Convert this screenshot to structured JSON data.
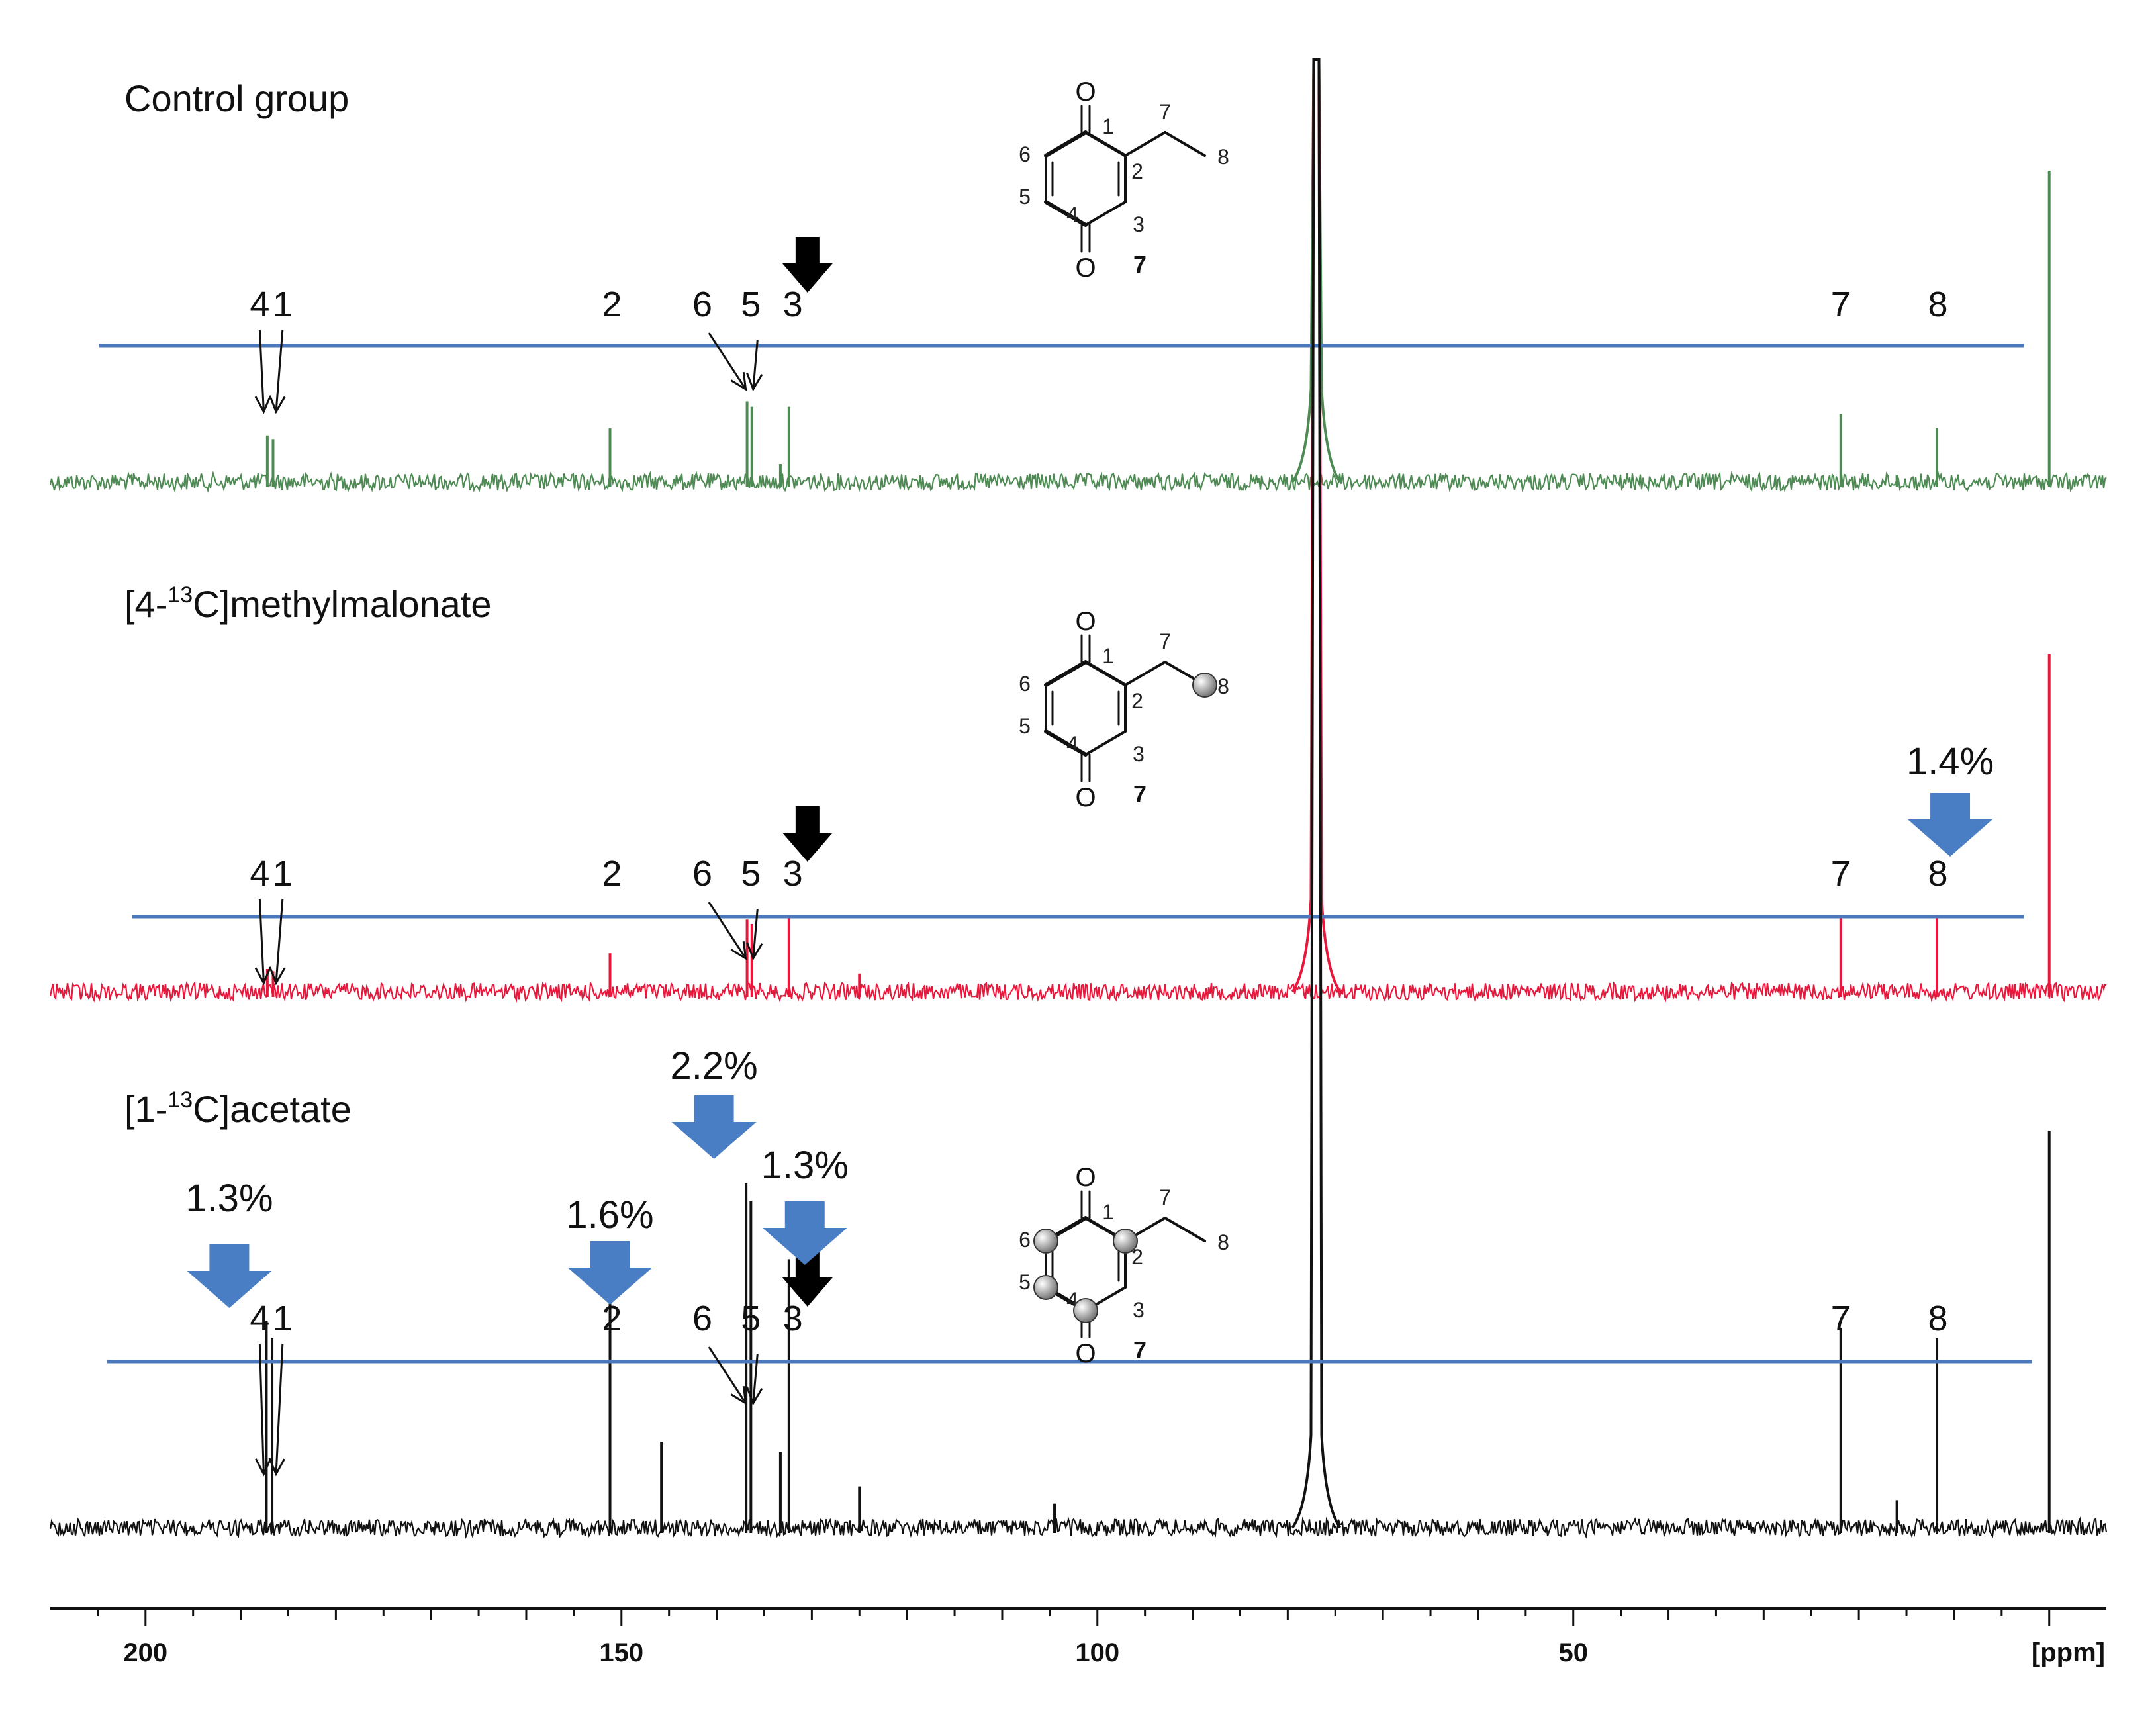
{
  "chart_data": {
    "type": "line",
    "xlabel": "[ppm]",
    "xlim": [
      210,
      -6
    ],
    "x_ticks": [
      200,
      150,
      100,
      50
    ],
    "x_tick_labels": [
      "200",
      "150",
      "100",
      "50"
    ],
    "x_unit_label": "[ppm]",
    "peak_positions_ppm": {
      "1": 186.7,
      "2": 151.2,
      "3": 132.4,
      "4": 187.3,
      "5": 136.3,
      "6": 136.8,
      "7": 21.9,
      "8": 11.8,
      "solvent": 77.0,
      "reference": 0.0
    },
    "series": [
      {
        "name": "Control group",
        "color": "#4e8a53",
        "peaks_ppm": [
          187.2,
          186.6,
          151.2,
          136.8,
          136.3,
          133.3,
          132.4,
          77.0,
          21.9,
          16.0,
          11.8,
          0.0
        ],
        "peak_heights": [
          0.26,
          0.24,
          0.3,
          0.45,
          0.42,
          0.1,
          0.42,
          1.0,
          0.38,
          0.04,
          0.3,
          1.0
        ],
        "peak_labels": [
          {
            "label": "4",
            "ppm": 188.0
          },
          {
            "label": "1",
            "ppm": 185.6
          },
          {
            "label": "2",
            "ppm": 151.0
          },
          {
            "label": "6",
            "ppm": 141.5
          },
          {
            "label": "5",
            "ppm": 136.4
          },
          {
            "label": "3",
            "ppm": 132.0
          },
          {
            "label": "7",
            "ppm": 21.9
          },
          {
            "label": "8",
            "ppm": 11.7
          }
        ],
        "enrichment": []
      },
      {
        "name": "[4-13C]methylmalonate",
        "title_parts": [
          "[4-",
          "13",
          "C]methylmalonate"
        ],
        "color": "#e8173c",
        "peaks_ppm": [
          187.2,
          186.6,
          151.2,
          136.8,
          136.3,
          132.4,
          125.0,
          77.0,
          21.9,
          11.8,
          0.0
        ],
        "peak_heights": [
          0.1,
          0.09,
          0.17,
          0.32,
          0.3,
          0.33,
          0.08,
          1.0,
          0.33,
          0.34,
          1.0
        ],
        "peak_labels": [
          {
            "label": "4",
            "ppm": 188.0
          },
          {
            "label": "1",
            "ppm": 185.6
          },
          {
            "label": "2",
            "ppm": 151.0
          },
          {
            "label": "6",
            "ppm": 141.5
          },
          {
            "label": "5",
            "ppm": 136.4
          },
          {
            "label": "3",
            "ppm": 132.0
          },
          {
            "label": "7",
            "ppm": 21.9
          },
          {
            "label": "8",
            "ppm": 11.7
          }
        ],
        "enrichment": [
          {
            "carbon": "8",
            "value": "1.4%"
          }
        ]
      },
      {
        "name": "[1-13C]acetate",
        "title_parts": [
          "[1-",
          "13",
          "C]acetate"
        ],
        "color": "#111111",
        "peaks_ppm": [
          187.3,
          186.7,
          151.2,
          145.8,
          136.9,
          136.4,
          133.3,
          132.4,
          125.0,
          104.5,
          77.0,
          21.9,
          16.0,
          11.8,
          0.0
        ],
        "peak_heights": [
          0.6,
          0.55,
          0.78,
          0.25,
          1.0,
          0.95,
          0.22,
          0.78,
          0.12,
          0.07,
          1.0,
          0.58,
          0.08,
          0.55,
          1.0
        ],
        "peak_labels": [
          {
            "label": "4",
            "ppm": 188.0
          },
          {
            "label": "1",
            "ppm": 185.6
          },
          {
            "label": "2",
            "ppm": 151.0
          },
          {
            "label": "6",
            "ppm": 141.5
          },
          {
            "label": "5",
            "ppm": 136.4
          },
          {
            "label": "3",
            "ppm": 132.0
          },
          {
            "label": "7",
            "ppm": 21.9
          },
          {
            "label": "8",
            "ppm": 11.7
          }
        ],
        "enrichment": [
          {
            "carbon": "4",
            "value": "1.3%"
          },
          {
            "carbon": "2",
            "value": "1.6%"
          },
          {
            "carbon": "6",
            "value": "2.2%"
          },
          {
            "carbon": "5",
            "value": "1.3%"
          }
        ]
      }
    ]
  },
  "structure": {
    "oxygen": "O",
    "atom_numbers": [
      "1",
      "2",
      "3",
      "4",
      "5",
      "6",
      "7",
      "8"
    ],
    "compound_label": "7"
  },
  "colors": {
    "baseline_line": "#4a78be",
    "enrichment_arrow": "#4a7ec4",
    "black_arrow": "#000000"
  }
}
